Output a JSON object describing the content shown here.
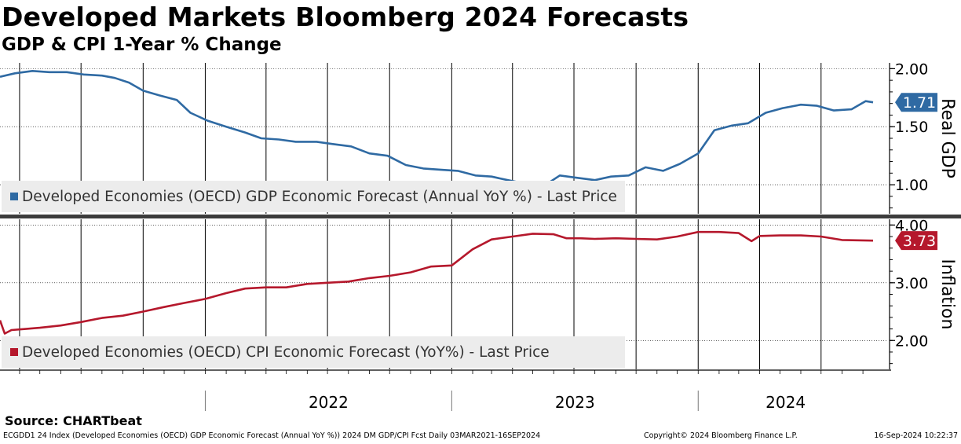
{
  "header": {
    "title": "Developed Markets Bloomberg 2024 Forecasts",
    "subtitle": "GDP & CPI 1-Year % Change"
  },
  "chart_data": [
    {
      "type": "line",
      "panel": "top",
      "axis_label": "Real GDP",
      "ylim": [
        0.75,
        2.05
      ],
      "yticks": [
        1.0,
        1.5,
        2.0
      ],
      "ytick_labels": [
        "1.00",
        "1.50",
        "2.00"
      ],
      "grid": true,
      "legend_placement": "bottom-left",
      "last_value_label": "1.71",
      "series": [
        {
          "name": "Developed Economies (OECD) GDP Economic Forecast (Annual YoY %) - Last Price",
          "color": "#2f6aa3",
          "x": [
            "2021-03-03",
            "2021-03-25",
            "2021-04-20",
            "2021-05-15",
            "2021-06-10",
            "2021-07-05",
            "2021-08-01",
            "2021-08-20",
            "2021-09-10",
            "2021-10-01",
            "2021-10-25",
            "2021-11-20",
            "2021-12-10",
            "2022-01-05",
            "2022-02-01",
            "2022-03-01",
            "2022-03-25",
            "2022-04-20",
            "2022-05-15",
            "2022-06-15",
            "2022-07-10",
            "2022-08-05",
            "2022-09-01",
            "2022-09-28",
            "2022-10-25",
            "2022-11-20",
            "2022-12-15",
            "2023-01-10",
            "2023-02-05",
            "2023-03-01",
            "2023-03-25",
            "2023-04-20",
            "2023-05-15",
            "2023-06-10",
            "2023-07-05",
            "2023-08-01",
            "2023-08-25",
            "2023-09-20",
            "2023-10-15",
            "2023-11-10",
            "2023-12-05",
            "2024-01-01",
            "2024-01-25",
            "2024-02-20",
            "2024-03-15",
            "2024-04-10",
            "2024-05-05",
            "2024-06-01",
            "2024-06-25",
            "2024-07-20",
            "2024-08-15",
            "2024-09-05",
            "2024-09-16"
          ],
          "y": [
            1.93,
            1.96,
            1.98,
            1.97,
            1.97,
            1.95,
            1.94,
            1.92,
            1.88,
            1.81,
            1.77,
            1.73,
            1.62,
            1.55,
            1.5,
            1.45,
            1.4,
            1.39,
            1.37,
            1.37,
            1.35,
            1.33,
            1.27,
            1.25,
            1.17,
            1.14,
            1.13,
            1.12,
            1.08,
            1.07,
            1.04,
            1.01,
            0.98,
            1.08,
            1.06,
            1.04,
            1.07,
            1.08,
            1.15,
            1.12,
            1.18,
            1.27,
            1.47,
            1.51,
            1.53,
            1.62,
            1.66,
            1.69,
            1.68,
            1.64,
            1.65,
            1.72,
            1.71
          ]
        }
      ]
    },
    {
      "type": "line",
      "panel": "bottom",
      "axis_label": "Inflation",
      "ylim": [
        1.5,
        4.1
      ],
      "yticks": [
        2.0,
        3.0,
        4.0
      ],
      "ytick_labels": [
        "2.00",
        "3.00",
        "4.00"
      ],
      "grid": true,
      "legend_placement": "bottom-left",
      "last_value_label": "3.73",
      "series": [
        {
          "name": "Developed Economies (OECD) CPI Economic Forecast (YoY%) - Last Price",
          "color": "#b5182c",
          "x": [
            "2021-03-03",
            "2021-03-10",
            "2021-03-20",
            "2021-04-10",
            "2021-05-01",
            "2021-06-01",
            "2021-07-01",
            "2021-08-01",
            "2021-09-01",
            "2021-10-01",
            "2021-11-01",
            "2021-12-01",
            "2022-01-01",
            "2022-02-01",
            "2022-03-01",
            "2022-04-01",
            "2022-05-01",
            "2022-06-01",
            "2022-07-01",
            "2022-08-01",
            "2022-09-01",
            "2022-10-01",
            "2022-11-01",
            "2022-12-01",
            "2023-01-01",
            "2023-02-01",
            "2023-03-01",
            "2023-04-01",
            "2023-05-01",
            "2023-06-01",
            "2023-06-20",
            "2023-07-10",
            "2023-08-01",
            "2023-09-01",
            "2023-10-01",
            "2023-11-01",
            "2023-12-01",
            "2024-01-01",
            "2024-02-01",
            "2024-03-01",
            "2024-03-20",
            "2024-04-01",
            "2024-05-01",
            "2024-06-01",
            "2024-07-01",
            "2024-08-01",
            "2024-09-16"
          ],
          "y": [
            2.35,
            2.12,
            2.18,
            2.2,
            2.22,
            2.26,
            2.32,
            2.39,
            2.43,
            2.5,
            2.58,
            2.65,
            2.72,
            2.82,
            2.9,
            2.92,
            2.92,
            2.98,
            3.0,
            3.02,
            3.08,
            3.12,
            3.18,
            3.28,
            3.3,
            3.58,
            3.75,
            3.8,
            3.85,
            3.84,
            3.77,
            3.77,
            3.76,
            3.77,
            3.76,
            3.75,
            3.8,
            3.88,
            3.88,
            3.86,
            3.72,
            3.81,
            3.82,
            3.82,
            3.8,
            3.74,
            3.73
          ]
        }
      ]
    }
  ],
  "xaxis": {
    "year_labels": [
      "2022",
      "2023",
      "2024"
    ]
  },
  "source": "Source: CHARTbeat",
  "footer": {
    "left": "ECGDD1 24 Index (Developed Economies (OECD) GDP Economic Forecast (Annual YoY %)) 2024 DM GDP/CPI Fcst  Daily 03MAR2021-16SEP2024",
    "middle": "Copyright© 2024 Bloomberg Finance L.P.",
    "right": "16-Sep-2024 10:22:37"
  }
}
